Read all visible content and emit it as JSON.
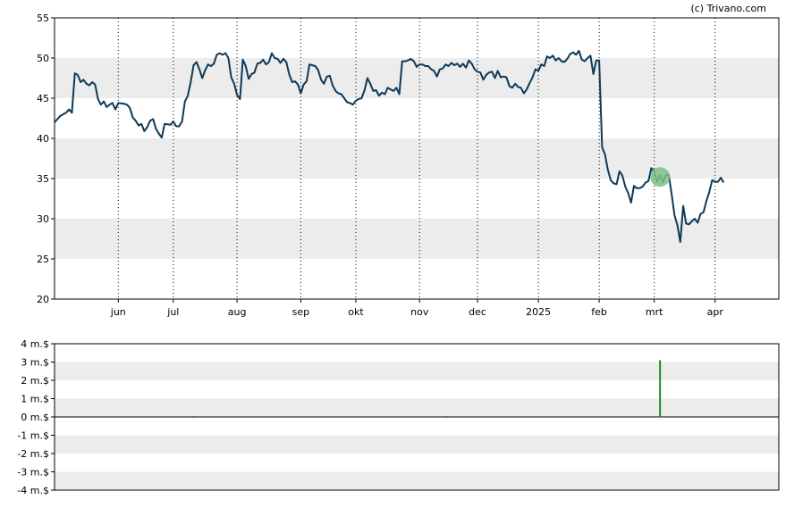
{
  "copyright": "(c) Trivano.com",
  "colors": {
    "price_line": "#0d3a58",
    "band_shade": "#ececec",
    "marker_fill": "#7fc08a",
    "volume_positive": "#228822",
    "volume_negative": "#cc2222"
  },
  "chart_data": [
    {
      "type": "line",
      "title": "",
      "xlabel": "",
      "ylabel": "",
      "ylim": [
        20,
        55
      ],
      "yticks": [
        "20",
        "25",
        "30",
        "35",
        "40",
        "45",
        "50",
        "55"
      ],
      "shaded_bands": [
        [
          25,
          30
        ],
        [
          35,
          40
        ],
        [
          45,
          50
        ]
      ],
      "month_labels": [
        "jun",
        "jul",
        "aug",
        "sep",
        "okt",
        "nov",
        "dec",
        "2025",
        "feb",
        "mrt",
        "apr"
      ],
      "month_day_index": [
        22,
        41,
        63,
        85,
        104,
        126,
        146,
        167,
        188,
        207,
        228
      ],
      "grid": "dotted vertical lines at month boundaries",
      "x_day_range": [
        0,
        250
      ],
      "marker": {
        "day": 209,
        "value": 35.2
      },
      "series": [
        {
          "points": [
            [
              0,
              42.0
            ],
            [
              2,
              42.8
            ],
            [
              4,
              43.2
            ],
            [
              5,
              43.6
            ],
            [
              6,
              43.2
            ],
            [
              7,
              48.1
            ],
            [
              8,
              47.9
            ],
            [
              9,
              47.0
            ],
            [
              10,
              47.3
            ],
            [
              11,
              46.8
            ],
            [
              12,
              46.6
            ],
            [
              13,
              47.0
            ],
            [
              14,
              46.7
            ],
            [
              15,
              44.9
            ],
            [
              16,
              44.2
            ],
            [
              17,
              44.6
            ],
            [
              18,
              43.9
            ],
            [
              19,
              44.2
            ],
            [
              20,
              44.4
            ],
            [
              21,
              43.6
            ],
            [
              22,
              44.4
            ],
            [
              24,
              44.3
            ],
            [
              25,
              44.2
            ],
            [
              26,
              43.8
            ],
            [
              27,
              42.6
            ],
            [
              28,
              42.2
            ],
            [
              29,
              41.6
            ],
            [
              30,
              41.8
            ],
            [
              31,
              40.9
            ],
            [
              32,
              41.4
            ],
            [
              33,
              42.2
            ],
            [
              34,
              42.4
            ],
            [
              35,
              41.2
            ],
            [
              36,
              40.6
            ],
            [
              37,
              40.1
            ],
            [
              38,
              41.8
            ],
            [
              40,
              41.7
            ],
            [
              41,
              42.1
            ],
            [
              42,
              41.5
            ],
            [
              43,
              41.5
            ],
            [
              44,
              42.1
            ],
            [
              45,
              44.6
            ],
            [
              46,
              45.3
            ],
            [
              47,
              47.0
            ],
            [
              48,
              49.1
            ],
            [
              49,
              49.5
            ],
            [
              50,
              48.6
            ],
            [
              51,
              47.5
            ],
            [
              52,
              48.5
            ],
            [
              53,
              49.2
            ],
            [
              54,
              49.0
            ],
            [
              55,
              49.3
            ],
            [
              56,
              50.4
            ],
            [
              57,
              50.6
            ],
            [
              58,
              50.4
            ],
            [
              59,
              50.6
            ],
            [
              60,
              50.0
            ],
            [
              61,
              47.6
            ],
            [
              62,
              46.8
            ],
            [
              63,
              45.4
            ],
            [
              64,
              44.9
            ],
            [
              65,
              49.8
            ],
            [
              66,
              49.0
            ],
            [
              67,
              47.4
            ],
            [
              68,
              48.0
            ],
            [
              69,
              48.2
            ],
            [
              70,
              49.3
            ],
            [
              71,
              49.4
            ],
            [
              72,
              49.8
            ],
            [
              73,
              49.2
            ],
            [
              74,
              49.5
            ],
            [
              75,
              50.6
            ],
            [
              76,
              50.0
            ],
            [
              77,
              49.9
            ],
            [
              78,
              49.4
            ],
            [
              79,
              49.9
            ],
            [
              80,
              49.5
            ],
            [
              81,
              48.0
            ],
            [
              82,
              47.0
            ],
            [
              83,
              47.1
            ],
            [
              84,
              46.7
            ],
            [
              85,
              45.6
            ],
            [
              86,
              46.7
            ],
            [
              87,
              47.1
            ],
            [
              88,
              49.2
            ],
            [
              89,
              49.1
            ],
            [
              90,
              49.0
            ],
            [
              91,
              48.5
            ],
            [
              92,
              47.3
            ],
            [
              93,
              46.8
            ],
            [
              94,
              47.7
            ],
            [
              95,
              47.8
            ],
            [
              96,
              46.6
            ],
            [
              97,
              45.9
            ],
            [
              98,
              45.6
            ],
            [
              99,
              45.5
            ],
            [
              100,
              45.0
            ],
            [
              101,
              44.5
            ],
            [
              102,
              44.4
            ],
            [
              103,
              44.2
            ],
            [
              104,
              44.7
            ],
            [
              105,
              44.9
            ],
            [
              106,
              45.0
            ],
            [
              107,
              46.0
            ],
            [
              108,
              47.5
            ],
            [
              109,
              46.8
            ],
            [
              110,
              45.9
            ],
            [
              111,
              46.0
            ],
            [
              112,
              45.3
            ],
            [
              113,
              45.7
            ],
            [
              114,
              45.5
            ],
            [
              115,
              46.3
            ],
            [
              116,
              46.1
            ],
            [
              117,
              45.9
            ],
            [
              118,
              46.3
            ],
            [
              119,
              45.5
            ],
            [
              120,
              49.6
            ],
            [
              121,
              49.6
            ],
            [
              122,
              49.7
            ],
            [
              123,
              49.9
            ],
            [
              124,
              49.6
            ],
            [
              125,
              48.9
            ],
            [
              126,
              49.2
            ],
            [
              127,
              49.2
            ],
            [
              128,
              49.0
            ],
            [
              129,
              49.0
            ],
            [
              130,
              48.6
            ],
            [
              131,
              48.4
            ],
            [
              132,
              47.7
            ],
            [
              133,
              48.6
            ],
            [
              134,
              48.7
            ],
            [
              135,
              49.2
            ],
            [
              136,
              49.0
            ],
            [
              137,
              49.4
            ],
            [
              138,
              49.1
            ],
            [
              139,
              49.3
            ],
            [
              140,
              48.9
            ],
            [
              141,
              49.3
            ],
            [
              142,
              48.8
            ],
            [
              143,
              49.7
            ],
            [
              144,
              49.3
            ],
            [
              145,
              48.6
            ],
            [
              146,
              48.3
            ],
            [
              147,
              48.2
            ],
            [
              148,
              47.3
            ],
            [
              149,
              47.9
            ],
            [
              150,
              48.2
            ],
            [
              151,
              48.3
            ],
            [
              152,
              47.5
            ],
            [
              153,
              48.4
            ],
            [
              154,
              47.6
            ],
            [
              155,
              47.7
            ],
            [
              156,
              47.6
            ],
            [
              157,
              46.5
            ],
            [
              158,
              46.3
            ],
            [
              159,
              46.8
            ],
            [
              160,
              46.4
            ],
            [
              161,
              46.3
            ],
            [
              162,
              45.6
            ],
            [
              163,
              46.1
            ],
            [
              164,
              46.9
            ],
            [
              165,
              47.6
            ],
            [
              166,
              48.6
            ],
            [
              167,
              48.4
            ],
            [
              168,
              49.2
            ],
            [
              169,
              49.0
            ],
            [
              170,
              50.2
            ],
            [
              171,
              50.0
            ],
            [
              172,
              50.3
            ],
            [
              173,
              49.7
            ],
            [
              174,
              50.0
            ],
            [
              175,
              49.6
            ],
            [
              176,
              49.5
            ],
            [
              177,
              49.9
            ],
            [
              178,
              50.5
            ],
            [
              179,
              50.7
            ],
            [
              180,
              50.4
            ],
            [
              181,
              50.9
            ],
            [
              182,
              49.8
            ],
            [
              183,
              49.6
            ],
            [
              184,
              50.0
            ],
            [
              185,
              50.3
            ],
            [
              186,
              48.0
            ],
            [
              187,
              49.7
            ],
            [
              188,
              49.7
            ],
            [
              189,
              38.9
            ],
            [
              190,
              38.0
            ],
            [
              191,
              36.1
            ],
            [
              192,
              34.8
            ],
            [
              193,
              34.4
            ],
            [
              194,
              34.3
            ],
            [
              195,
              35.9
            ],
            [
              196,
              35.4
            ],
            [
              197,
              34.0
            ],
            [
              198,
              33.2
            ],
            [
              199,
              32.0
            ],
            [
              200,
              34.1
            ],
            [
              201,
              33.8
            ],
            [
              202,
              33.8
            ],
            [
              203,
              34.0
            ],
            [
              204,
              34.5
            ],
            [
              205,
              34.7
            ],
            [
              206,
              36.3
            ],
            [
              207,
              35.9
            ],
            [
              208,
              34.6
            ],
            [
              209,
              35.4
            ],
            [
              210,
              34.5
            ],
            [
              211,
              35.4
            ],
            [
              212,
              35.5
            ],
            [
              213,
              33.1
            ],
            [
              214,
              30.4
            ],
            [
              215,
              29.2
            ],
            [
              216,
              27.1
            ],
            [
              217,
              31.6
            ],
            [
              218,
              29.4
            ],
            [
              219,
              29.3
            ],
            [
              220,
              29.7
            ],
            [
              221,
              30.0
            ],
            [
              222,
              29.5
            ],
            [
              223,
              30.6
            ],
            [
              224,
              30.8
            ],
            [
              225,
              32.2
            ],
            [
              226,
              33.3
            ],
            [
              227,
              34.8
            ],
            [
              228,
              34.6
            ],
            [
              229,
              34.6
            ],
            [
              230,
              35.1
            ],
            [
              231,
              34.5
            ]
          ]
        }
      ]
    },
    {
      "type": "bar",
      "title": "",
      "xlabel": "",
      "ylabel": "",
      "ylim": [
        -4,
        4
      ],
      "yticks": [
        "-4 m.$",
        "-3 m.$",
        "-2 m.$",
        "-1 m.$",
        "0 m.$",
        "1 m.$",
        "2 m.$",
        "3 m.$",
        "4 m.$"
      ],
      "shaded_bands": [
        [
          3,
          2
        ],
        [
          1,
          0
        ],
        [
          -1,
          -2
        ],
        [
          -3,
          -4
        ]
      ],
      "series": [
        {
          "points": [
            [
              48,
              -0.03
            ],
            [
              135,
              -0.03
            ],
            [
              209,
              3.1
            ]
          ]
        }
      ]
    }
  ]
}
